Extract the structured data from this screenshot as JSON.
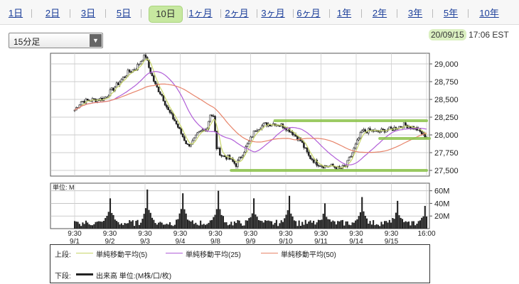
{
  "tabs": [
    {
      "label": "1日"
    },
    {
      "label": "2日"
    },
    {
      "label": "3日"
    },
    {
      "label": "5日"
    },
    {
      "label": "10日",
      "active": true
    },
    {
      "label": "1ヶ月"
    },
    {
      "label": "2ヶ月"
    },
    {
      "label": "3ヶ月"
    },
    {
      "label": "6ヶ月"
    },
    {
      "label": "1年"
    },
    {
      "label": "2年"
    },
    {
      "label": "3年"
    },
    {
      "label": "5年"
    },
    {
      "label": "10年"
    }
  ],
  "interval_select": {
    "label": "15分足",
    "icon": "dropdown-arrow-icon"
  },
  "timestamp": {
    "date": "20/09/15",
    "time": "17:06 EST"
  },
  "colors": {
    "candle": "#222222",
    "ma5": "#c8d66a",
    "ma25": "#b15fd8",
    "ma50": "#e7846a",
    "highlight": "#8bc34a",
    "volume": "#222222"
  },
  "legend": {
    "upper_prefix": "上段:",
    "lower_prefix": "下段:",
    "ma5": "単純移動平均(5)",
    "ma25": "単純移動平均(25)",
    "ma50": "単純移動平均(50)",
    "volume": "出来高 単位:(M株/口/枚)"
  },
  "chart_data": {
    "type": "candlestick",
    "price_axis": {
      "ticks": [
        "29,000",
        "28,750",
        "28,500",
        "28,250",
        "28,000",
        "27,750",
        "27,500"
      ],
      "range": [
        27420,
        29150
      ]
    },
    "volume_axis": {
      "unit_label": "単位: M",
      "ticks": [
        "60M",
        "40M",
        "20M"
      ],
      "range": [
        0,
        72
      ]
    },
    "x_labels": [
      {
        "time": "9:30",
        "date": "9/1"
      },
      {
        "time": "9:30",
        "date": "9/2"
      },
      {
        "time": "9:30",
        "date": "9/3"
      },
      {
        "time": "9:30",
        "date": "9/4"
      },
      {
        "time": "9:30",
        "date": "9/8"
      },
      {
        "time": "9:30",
        "date": "9/9"
      },
      {
        "time": "9:30",
        "date": "9/10"
      },
      {
        "time": "9:30",
        "date": "9/11"
      },
      {
        "time": "9:30",
        "date": "9/14"
      },
      {
        "time": "9:30",
        "date": "9/15"
      },
      {
        "time": "16:00",
        "date": ""
      }
    ],
    "price_path": [
      [
        0,
        28350
      ],
      [
        4,
        28470
      ],
      [
        10,
        28490
      ],
      [
        18,
        28510
      ],
      [
        26,
        28700
      ],
      [
        33,
        28880
      ],
      [
        38,
        28940
      ],
      [
        42,
        29080
      ],
      [
        44,
        29110
      ],
      [
        46,
        28950
      ],
      [
        50,
        28700
      ],
      [
        54,
        28560
      ],
      [
        58,
        28340
      ],
      [
        62,
        28200
      ],
      [
        66,
        28020
      ],
      [
        70,
        27850
      ],
      [
        73,
        27900
      ],
      [
        76,
        28000
      ],
      [
        79,
        28060
      ],
      [
        82,
        28100
      ],
      [
        84,
        28300
      ],
      [
        86,
        28250
      ],
      [
        88,
        27820
      ],
      [
        91,
        27710
      ],
      [
        95,
        27680
      ],
      [
        100,
        27580
      ],
      [
        103,
        27700
      ],
      [
        108,
        27900
      ],
      [
        112,
        28080
      ],
      [
        118,
        28150
      ],
      [
        124,
        28160
      ],
      [
        130,
        28120
      ],
      [
        134,
        28050
      ],
      [
        140,
        27920
      ],
      [
        145,
        27700
      ],
      [
        150,
        27600
      ],
      [
        155,
        27560
      ],
      [
        160,
        27560
      ],
      [
        164,
        27520
      ],
      [
        168,
        27560
      ],
      [
        172,
        27750
      ],
      [
        175,
        27900
      ],
      [
        178,
        28050
      ],
      [
        184,
        28060
      ],
      [
        188,
        28040
      ],
      [
        192,
        28070
      ],
      [
        196,
        28080
      ],
      [
        200,
        28110
      ],
      [
        204,
        28140
      ],
      [
        208,
        28120
      ],
      [
        212,
        28080
      ],
      [
        215,
        28020
      ],
      [
        217,
        27980
      ]
    ],
    "volume_spikes": [
      {
        "bar": 0,
        "value": 12
      },
      {
        "bar": 22,
        "value": 48
      },
      {
        "bar": 45,
        "value": 62
      },
      {
        "bar": 67,
        "value": 56
      },
      {
        "bar": 89,
        "value": 60
      },
      {
        "bar": 111,
        "value": 48
      },
      {
        "bar": 133,
        "value": 52
      },
      {
        "bar": 155,
        "value": 40
      },
      {
        "bar": 178,
        "value": 50
      },
      {
        "bar": 200,
        "value": 44
      },
      {
        "bar": 217,
        "value": 36
      }
    ],
    "highlight_levels": [
      {
        "price": 28200,
        "from_bar": 124,
        "to_bar": 218
      },
      {
        "price": 27950,
        "from_bar": 189,
        "to_bar": 227
      },
      {
        "price": 27500,
        "from_bar": 97,
        "to_bar": 218
      }
    ]
  }
}
